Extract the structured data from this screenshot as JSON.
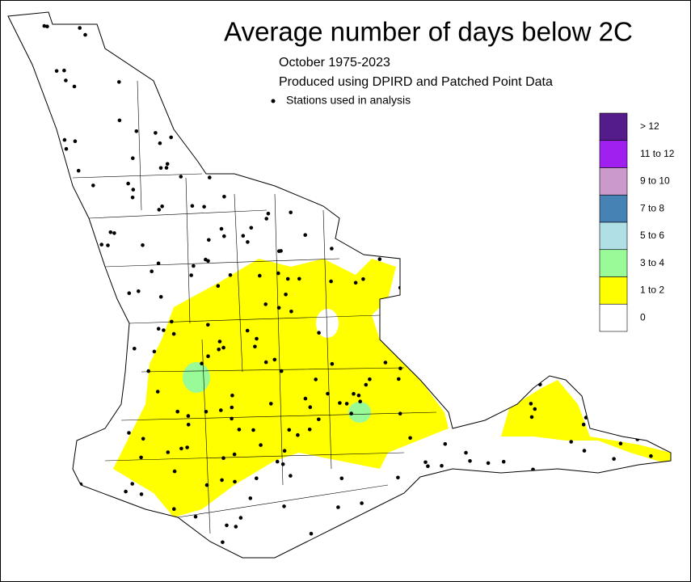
{
  "title": "Average number of days below 2C",
  "subtitle_lines": [
    "October 1975-2023",
    "Produced using DPIRD and Patched Point Data"
  ],
  "station_legend": "Stations used in analysis",
  "legend": {
    "classes": [
      {
        "label": "> 12",
        "color": "#541b8a"
      },
      {
        "label": "11 to 12",
        "color": "#a020f0"
      },
      {
        "label": "9 to 10",
        "color": "#cc99cc"
      },
      {
        "label": "7 to 8",
        "color": "#4682b4"
      },
      {
        "label": "5 to 6",
        "color": "#b0e0e6"
      },
      {
        "label": "3 to 4",
        "color": "#98fb98"
      },
      {
        "label": "1 to 2",
        "color": "#ffff00"
      },
      {
        "label": "0",
        "color": "#ffffff"
      }
    ]
  }
}
